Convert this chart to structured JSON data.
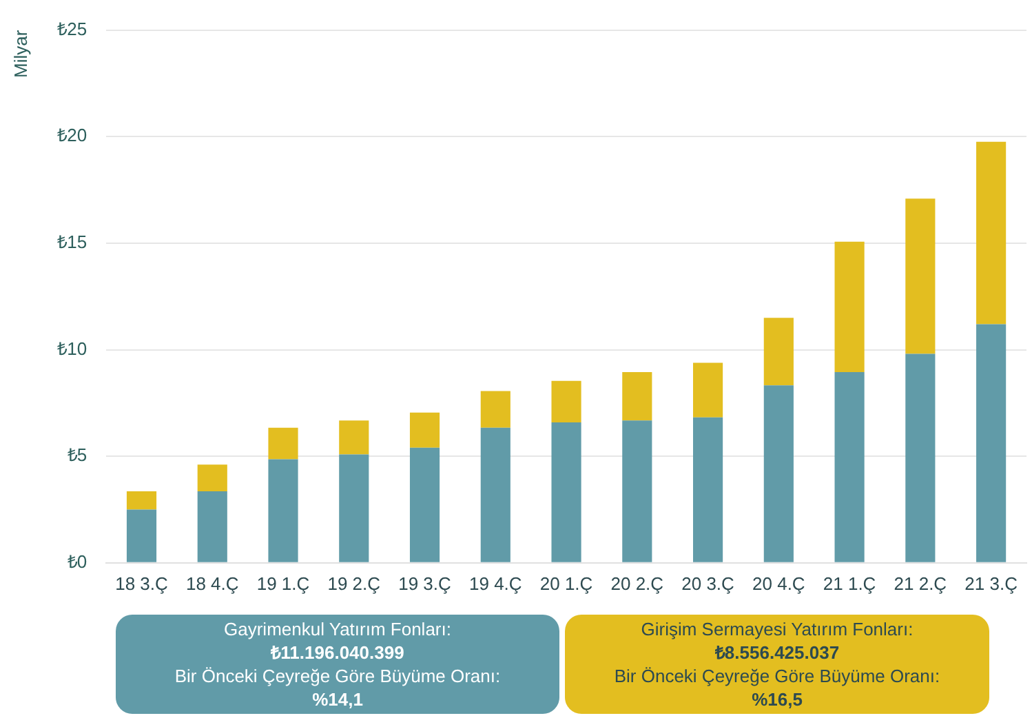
{
  "chart_data": {
    "type": "bar",
    "stacked": true,
    "ylabel": "Milyar",
    "categories": [
      "18 3.Ç",
      "18 4.Ç",
      "19 1.Ç",
      "19 2.Ç",
      "19 3.Ç",
      "19 4.Ç",
      "20 1.Ç",
      "20 2.Ç",
      "20 3.Ç",
      "20 4.Ç",
      "21 1.Ç",
      "21 2.Ç",
      "21 3.Ç"
    ],
    "series": [
      {
        "color": "#619ba8",
        "values": [
          2.5,
          3.36,
          4.86,
          5.09,
          5.4,
          6.34,
          6.59,
          6.68,
          6.82,
          8.33,
          8.95,
          9.81,
          11.2
        ]
      },
      {
        "color": "#e3be20",
        "values": [
          0.86,
          1.25,
          1.48,
          1.59,
          1.65,
          1.72,
          1.95,
          2.27,
          2.57,
          3.17,
          6.12,
          7.28,
          8.56
        ]
      }
    ],
    "ylim": [
      0,
      25
    ],
    "yticks": [
      {
        "value": 0,
        "label": "₺0"
      },
      {
        "value": 5,
        "label": "₺5"
      },
      {
        "value": 10,
        "label": "₺10"
      },
      {
        "value": 15,
        "label": "₺15"
      },
      {
        "value": 20,
        "label": "₺20"
      },
      {
        "value": 25,
        "label": "₺25"
      }
    ],
    "grid": "y",
    "legend": false,
    "annotations": [
      "Gayrimenkul Yatırım Fonları:\n₺11.196.040.399\nBir Önceki Çeyreğe Göre Büyüme Oranı:\n%14,1",
      "Girişim Sermayesi Yatırım Fonları:\n₺8.556.425.037\nBir Önceki Çeyreğe Göre Büyüme Oranı:\n%16,5"
    ]
  }
}
